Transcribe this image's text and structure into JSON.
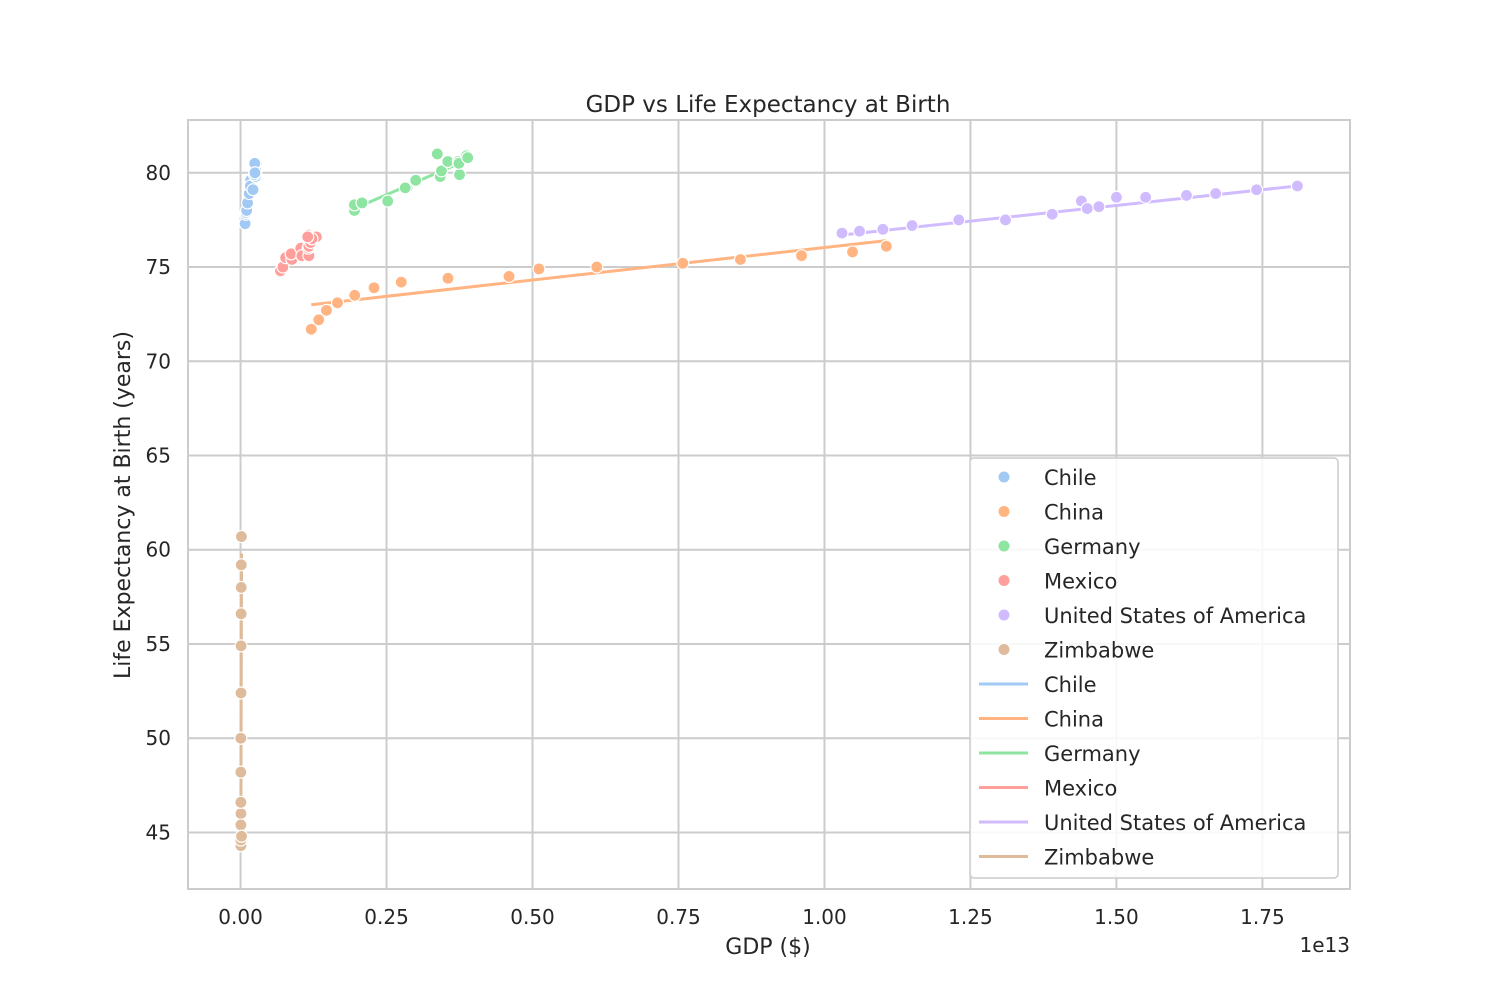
{
  "chart_data": {
    "type": "scatter",
    "title": "GDP vs Life Expectancy at Birth",
    "xlabel": "GDP ($)",
    "ylabel": "Life Expectancy at Birth (years)",
    "x_scale_note": "1e13",
    "xlim": [
      -0.09,
      1.9
    ],
    "ylim": [
      42,
      82.8
    ],
    "x_ticks": [
      0.0,
      0.25,
      0.5,
      0.75,
      1.0,
      1.25,
      1.5,
      1.75
    ],
    "x_tick_labels": [
      "0.00",
      "0.25",
      "0.50",
      "0.75",
      "1.00",
      "1.25",
      "1.50",
      "1.75"
    ],
    "y_ticks": [
      45,
      50,
      55,
      60,
      65,
      70,
      75,
      80
    ],
    "y_tick_labels": [
      "45",
      "50",
      "55",
      "60",
      "65",
      "70",
      "75",
      "80"
    ],
    "grid": true,
    "legend_position": "lower-right",
    "x_unit_multiplier": 10000000000000.0,
    "series": [
      {
        "name": "Chile",
        "color": "#a1c9f4",
        "points": [
          [
            0.0078,
            77.3
          ],
          [
            0.0087,
            77.8
          ],
          [
            0.0095,
            77.9
          ],
          [
            0.0104,
            78.0
          ],
          [
            0.012,
            78.4
          ],
          [
            0.015,
            78.9
          ],
          [
            0.0173,
            79.6
          ],
          [
            0.0169,
            79.3
          ],
          [
            0.0213,
            79.1
          ],
          [
            0.0257,
            79.8
          ],
          [
            0.0267,
            80.1
          ],
          [
            0.0261,
            80.3
          ],
          [
            0.0265,
            80.5
          ],
          [
            0.0243,
            80.5
          ],
          [
            0.0238,
            79.9
          ],
          [
            0.0247,
            80.0
          ]
        ],
        "fit": [
          [
            0.0078,
            77.6
          ],
          [
            0.0267,
            80.2
          ]
        ]
      },
      {
        "name": "China",
        "color": "#ffb482",
        "points": [
          [
            0.1211,
            71.7
          ],
          [
            0.1339,
            72.2
          ],
          [
            0.1471,
            72.7
          ],
          [
            0.166,
            73.1
          ],
          [
            0.1955,
            73.5
          ],
          [
            0.2286,
            73.9
          ],
          [
            0.2752,
            74.2
          ],
          [
            0.3552,
            74.4
          ],
          [
            0.4598,
            74.5
          ],
          [
            0.511,
            74.9
          ],
          [
            0.61,
            75.0
          ],
          [
            0.7573,
            75.2
          ],
          [
            0.8561,
            75.4
          ],
          [
            0.9607,
            75.6
          ],
          [
            1.048,
            75.8
          ],
          [
            1.106,
            76.1
          ]
        ],
        "fit": [
          [
            0.1211,
            73.0
          ],
          [
            1.106,
            76.4
          ]
        ]
      },
      {
        "name": "Germany",
        "color": "#8de5a1",
        "points": [
          [
            0.195,
            78.0
          ],
          [
            0.195,
            78.3
          ],
          [
            0.208,
            78.4
          ],
          [
            0.252,
            78.5
          ],
          [
            0.285,
            79.2
          ],
          [
            0.282,
            79.2
          ],
          [
            0.3,
            79.6
          ],
          [
            0.337,
            81.0
          ],
          [
            0.342,
            79.8
          ],
          [
            0.344,
            80.1
          ],
          [
            0.355,
            80.6
          ],
          [
            0.373,
            80.6
          ],
          [
            0.375,
            79.9
          ],
          [
            0.387,
            80.9
          ],
          [
            0.374,
            80.5
          ],
          [
            0.389,
            80.8
          ]
        ],
        "fit": [
          [
            0.195,
            78.1
          ],
          [
            0.389,
            80.7
          ]
        ]
      },
      {
        "name": "Mexico",
        "color": "#ff9f9b",
        "points": [
          [
            0.0684,
            74.8
          ],
          [
            0.0725,
            75.0
          ],
          [
            0.0772,
            75.5
          ],
          [
            0.088,
            75.4
          ],
          [
            0.0867,
            75.7
          ],
          [
            0.1031,
            76.0
          ],
          [
            0.105,
            75.6
          ],
          [
            0.117,
            75.6
          ],
          [
            0.116,
            76.0
          ],
          [
            0.117,
            76.1
          ],
          [
            0.12,
            76.3
          ],
          [
            0.117,
            76.7
          ],
          [
            0.1186,
            76.6
          ],
          [
            0.1298,
            76.6
          ],
          [
            0.1223,
            76.5
          ],
          [
            0.115,
            76.6
          ]
        ],
        "fit": [
          [
            0.0684,
            75.0
          ],
          [
            0.1298,
            76.6
          ]
        ]
      },
      {
        "name": "United States of America",
        "color": "#d0bbff",
        "points": [
          [
            1.03,
            76.8
          ],
          [
            1.06,
            76.9
          ],
          [
            1.1,
            77.0
          ],
          [
            1.15,
            77.2
          ],
          [
            1.23,
            77.5
          ],
          [
            1.31,
            77.5
          ],
          [
            1.39,
            77.8
          ],
          [
            1.44,
            78.5
          ],
          [
            1.45,
            78.1
          ],
          [
            1.47,
            78.2
          ],
          [
            1.5,
            78.7
          ],
          [
            1.55,
            78.7
          ],
          [
            1.62,
            78.8
          ],
          [
            1.67,
            78.9
          ],
          [
            1.74,
            79.1
          ],
          [
            1.81,
            79.3
          ]
        ],
        "fit": [
          [
            1.03,
            76.7
          ],
          [
            1.81,
            79.3
          ]
        ]
      },
      {
        "name": "Zimbabwe",
        "color": "#debb9b",
        "points": [
          [
            0.00067,
            46.0
          ],
          [
            0.00067,
            45.3
          ],
          [
            0.00063,
            44.3
          ],
          [
            0.00056,
            44.6
          ],
          [
            0.00059,
            44.6
          ],
          [
            0.00054,
            45.4
          ],
          [
            0.00055,
            46.6
          ],
          [
            0.00054,
            48.2
          ],
          [
            0.00044,
            50.0
          ],
          [
            0.00076,
            52.4
          ],
          [
            0.00086,
            54.9
          ],
          [
            0.00094,
            56.6
          ],
          [
            0.00114,
            58.0
          ],
          [
            0.00125,
            59.2
          ],
          [
            0.00149,
            60.7
          ],
          [
            0.00165,
            44.8
          ]
        ],
        "fit": [
          [
            0.0004,
            44.1
          ],
          [
            0.00165,
            59.8
          ]
        ]
      }
    ]
  }
}
